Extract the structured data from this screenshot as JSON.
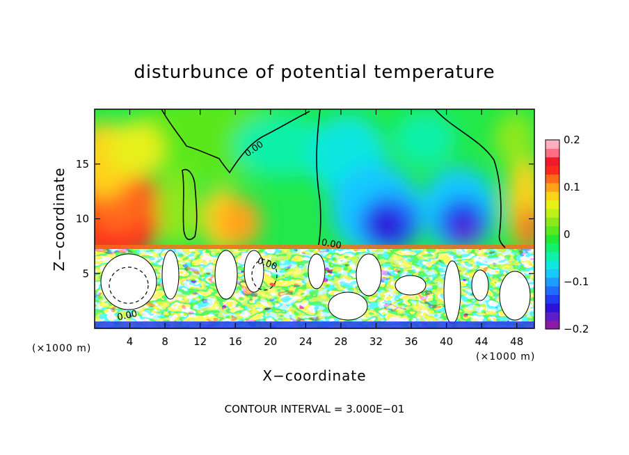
{
  "chart_data": {
    "type": "heatmap",
    "title": "disturbunce of potential temperature",
    "xlabel": "X−coordinate",
    "ylabel": "Z−coordinate",
    "x_unit_left": "(×1000 m)",
    "x_unit_right": "(×1000 m)",
    "xlim": [
      0,
      50
    ],
    "ylim": [
      0,
      20
    ],
    "x_ticks": [
      4,
      8,
      12,
      16,
      20,
      24,
      28,
      32,
      36,
      40,
      44,
      48
    ],
    "x_tick_labels": [
      "4",
      "8",
      "12",
      "16",
      "20",
      "24",
      "28",
      "32",
      "36",
      "40",
      "44",
      "48"
    ],
    "y_ticks": [
      5,
      10,
      15
    ],
    "y_tick_labels": [
      "5",
      "10",
      "15"
    ],
    "colorbar": {
      "min": -0.2,
      "max": 0.2,
      "ticks": [
        0.2,
        0.1,
        0,
        -0.1,
        -0.2
      ],
      "tick_labels": [
        "0.2",
        "0.1",
        "0",
        "−0.1",
        "−0.2"
      ],
      "colors": [
        "#8b1aa6",
        "#5b1ec8",
        "#2b12d8",
        "#1f3cf0",
        "#1f6cff",
        "#1f9cff",
        "#19c8ff",
        "#11e6e0",
        "#10f0a8",
        "#14f06e",
        "#25e835",
        "#5ae81f",
        "#8ce81a",
        "#bef01a",
        "#e8f01a",
        "#ffd21a",
        "#ffa21a",
        "#ff6a1a",
        "#ff2a1a",
        "#f01a2a",
        "#ff6e82",
        "#ffb0bc"
      ]
    },
    "contour_labels": [
      "0.00",
      "0.00",
      "0.00",
      "0.00"
    ],
    "contour_interval_text": "CONTOUR INTERVAL = 3.000E−01"
  }
}
